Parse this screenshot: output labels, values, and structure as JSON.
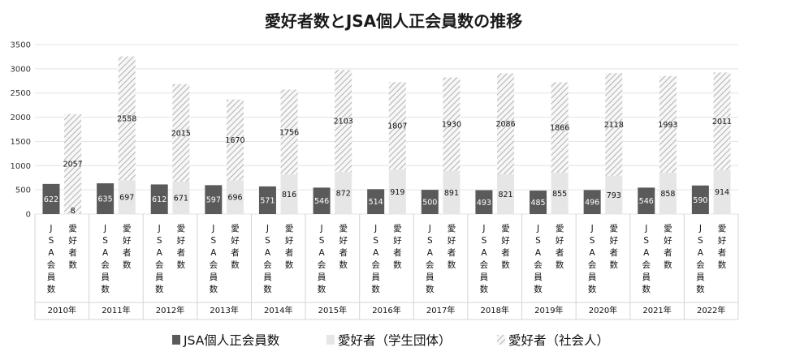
{
  "chart_data": {
    "type": "bar",
    "title": "愛好者数とJSA個人正会員数の推移",
    "ylim": [
      0,
      3500
    ],
    "yticks": [
      0,
      500,
      1000,
      1500,
      2000,
      2500,
      3000,
      3500
    ],
    "grid": true,
    "legend_position": "bottom",
    "years": [
      "2010年",
      "2011年",
      "2012年",
      "2013年",
      "2014年",
      "2015年",
      "2016年",
      "2017年",
      "2018年",
      "2019年",
      "2020年",
      "2021年",
      "2022年"
    ],
    "sub_categories": [
      "JSA会員数",
      "愛好者数"
    ],
    "series": [
      {
        "name": "JSA個人正会員数",
        "color": "#5a5a5a",
        "stack": "JSA会員数",
        "values": [
          622,
          635,
          612,
          597,
          571,
          546,
          514,
          500,
          493,
          485,
          496,
          546,
          590
        ]
      },
      {
        "name": "愛好者（学生団体）",
        "color": "#e6e6e6",
        "stack": "愛好者数",
        "values": [
          8,
          697,
          671,
          696,
          816,
          872,
          919,
          891,
          821,
          855,
          793,
          858,
          914
        ]
      },
      {
        "name": "愛好者（社会人）",
        "color": "#bdbdbd",
        "pattern": "hatch",
        "stack": "愛好者数",
        "values": [
          2057,
          2558,
          2015,
          1670,
          1756,
          2103,
          1807,
          1930,
          2086,
          1866,
          2118,
          1993,
          2011
        ]
      }
    ]
  }
}
